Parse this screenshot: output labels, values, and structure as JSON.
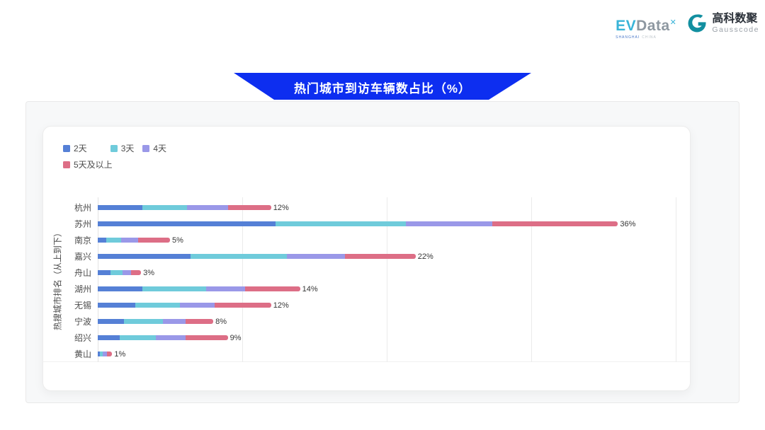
{
  "header": {
    "evdata": {
      "ev": "EV",
      "data": "Data",
      "sup": "✕",
      "shanghai": "SHANGHAI",
      "china": "CHINA"
    },
    "gausscode": {
      "cn": "高科数聚",
      "en": "Gausscode",
      "icon": "gausscode-g-icon",
      "icon_color": "#128fa0"
    }
  },
  "banner": {
    "title": "热门城市到访车辆数占比（%）",
    "bg_color": "#0d2ef0",
    "text_color": "#ffffff"
  },
  "chart_data": {
    "type": "bar",
    "variant": "horizontal-stacked",
    "title": "热门城市到访车辆数占比（%）",
    "xlabel": "",
    "ylabel": "热搜城市排名（从上到下）",
    "categories": [
      "杭州",
      "苏州",
      "南京",
      "嘉兴",
      "舟山",
      "湖州",
      "无锡",
      "宁波",
      "绍兴",
      "黄山"
    ],
    "series": [
      {
        "name": "2天",
        "color": "#5580d6",
        "values": [
          3.1,
          12.3,
          0.6,
          6.4,
          0.9,
          3.1,
          2.6,
          1.8,
          1.5,
          0.15
        ]
      },
      {
        "name": "3天",
        "color": "#6fcbdb",
        "values": [
          3.1,
          9.0,
          1.0,
          6.7,
          0.8,
          4.4,
          3.1,
          2.7,
          2.5,
          0.2
        ]
      },
      {
        "name": "4天",
        "color": "#9a98e8",
        "values": [
          2.8,
          6.0,
          1.2,
          4.0,
          0.6,
          2.7,
          2.4,
          1.6,
          2.1,
          0.3
        ]
      },
      {
        "name": "5天及以上",
        "color": "#dd6e86",
        "values": [
          3.0,
          8.7,
          2.2,
          4.9,
          0.7,
          3.8,
          3.9,
          1.9,
          2.9,
          0.35
        ]
      }
    ],
    "totals": [
      12,
      36,
      5,
      22,
      3,
      14,
      12,
      8,
      9,
      1
    ],
    "total_labels": [
      "12%",
      "36%",
      "5%",
      "22%",
      "3%",
      "14%",
      "12%",
      "8%",
      "9%",
      "1%"
    ],
    "xlim": [
      0,
      41
    ],
    "gridlines_percent": [
      10,
      20,
      30,
      40
    ],
    "grid": true,
    "legend_position": "top-left",
    "x_tick_labels_visible": false
  }
}
